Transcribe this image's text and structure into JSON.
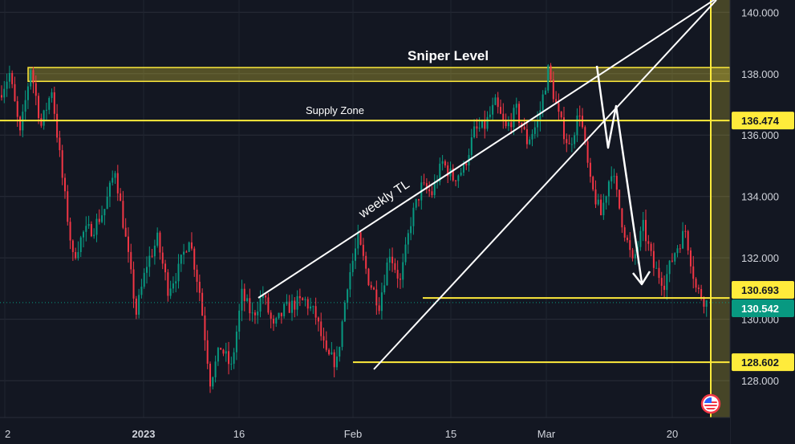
{
  "chart_data": {
    "type": "candlestick",
    "x_ticks": [
      "2",
      "2023",
      "16",
      "Feb",
      "15",
      "Mar",
      "20"
    ],
    "y_ticks": [
      "140.000",
      "138.000",
      "136.000",
      "134.000",
      "132.000",
      "130.000",
      "128.000"
    ],
    "ylim": [
      126.8,
      140.4
    ],
    "price_labels": [
      {
        "value": 136.474,
        "text": "136.474",
        "bg": "#ffeb3b",
        "fg": "#131722"
      },
      {
        "value": 130.693,
        "text": "130.693",
        "bg": "#ffeb3b",
        "fg": "#131722"
      },
      {
        "value": 130.542,
        "text": "130.542",
        "bg": "#089981",
        "fg": "#ffffff"
      },
      {
        "value": 128.602,
        "text": "128.602",
        "bg": "#ffeb3b",
        "fg": "#131722"
      }
    ],
    "annotations": {
      "sniper_level": "Sniper Level",
      "supply_zone": "Supply Zone",
      "weekly_tl": "weekly TL"
    },
    "zones": {
      "sniper_level_range": [
        137.75,
        138.2
      ],
      "supply_zone_level": 136.474,
      "support_level": 130.693,
      "low_level": 128.602
    },
    "last_price": 130.542,
    "candle_path": [
      137.3,
      138.0,
      136.0,
      138.2,
      136.3,
      137.5,
      134.6,
      132.0,
      132.8,
      133.0,
      133.6,
      134.9,
      132.6,
      130.2,
      131.8,
      132.6,
      131.0,
      131.6,
      132.7,
      130.9,
      128.0,
      129.1,
      128.4,
      130.8,
      130.1,
      130.8,
      129.7,
      130.3,
      130.5,
      130.6,
      130.1,
      128.8,
      128.6,
      131.2,
      132.6,
      131.3,
      130.5,
      132.2,
      131.2,
      133.2,
      134.3,
      134.1,
      135.1,
      134.6,
      134.9,
      136.1,
      136.3,
      137.0,
      136.2,
      136.8,
      135.8,
      136.4,
      138.1,
      136.6,
      135.6,
      136.8,
      134.4,
      133.4,
      134.9,
      133.2,
      131.8,
      133.0,
      131.7,
      131.2,
      132.2,
      132.9,
      131.0,
      130.54
    ],
    "colors": {
      "up": "#089981",
      "down": "#f23645",
      "level": "#ffeb3b",
      "white": "#ffffff"
    }
  }
}
